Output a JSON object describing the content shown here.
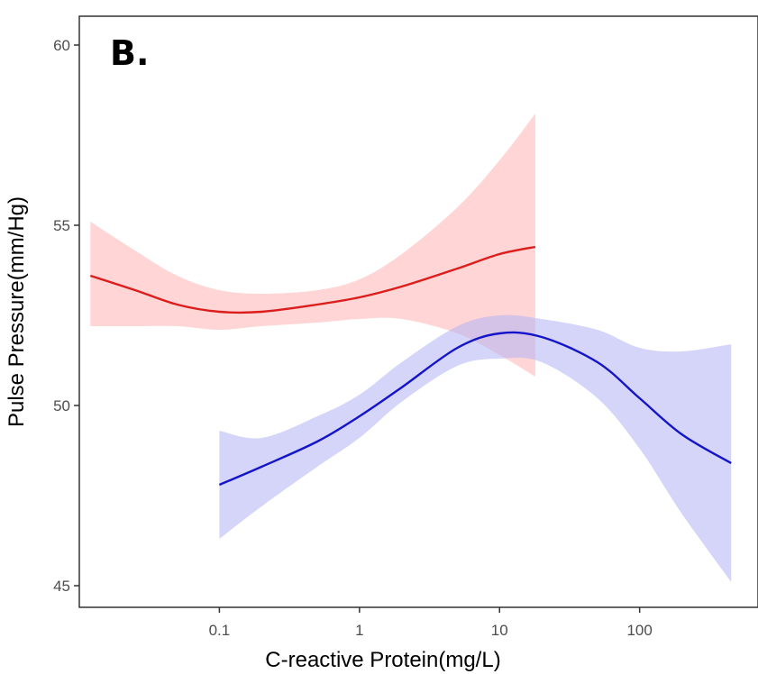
{
  "chart_data": {
    "type": "line",
    "panel_label": "B.",
    "xlabel": "C-reactive Protein(mg/L)",
    "ylabel": "Pulse Pressure(mm/Hg)",
    "x_scale": "log10",
    "xlim": [
      0.01,
      700
    ],
    "ylim": [
      44.4,
      60.8
    ],
    "x_ticks": [
      0.1,
      1,
      10,
      100
    ],
    "x_tick_labels": [
      "0.1",
      "1",
      "10",
      "100"
    ],
    "y_ticks": [
      45,
      50,
      55,
      60
    ],
    "y_tick_labels": [
      "45",
      "50",
      "55",
      "60"
    ],
    "grid": false,
    "legend": "none",
    "series": [
      {
        "color": "#dd1c1c",
        "band_color": "#ffb3b3",
        "x": [
          0.012,
          0.025,
          0.05,
          0.1,
          0.2,
          0.5,
          1,
          2,
          5,
          10,
          18
        ],
        "y": [
          53.6,
          53.2,
          52.8,
          52.6,
          52.6,
          52.8,
          53.0,
          53.3,
          53.8,
          54.2,
          54.4
        ],
        "lower": [
          52.2,
          52.2,
          52.2,
          52.1,
          52.2,
          52.3,
          52.4,
          52.4,
          52.0,
          51.4,
          50.8
        ],
        "upper": [
          55.1,
          54.3,
          53.6,
          53.2,
          53.1,
          53.2,
          53.5,
          54.2,
          55.5,
          56.8,
          58.1
        ]
      },
      {
        "color": "#1414c8",
        "band_color": "#b3b3f5",
        "x": [
          0.1,
          0.2,
          0.5,
          1,
          2,
          5,
          10,
          20,
          50,
          100,
          200,
          450
        ],
        "y": [
          47.8,
          48.3,
          49.0,
          49.7,
          50.5,
          51.6,
          52.0,
          51.9,
          51.2,
          50.2,
          49.2,
          48.4
        ],
        "lower": [
          46.3,
          47.2,
          48.3,
          49.1,
          50.1,
          51.1,
          51.3,
          51.2,
          50.2,
          48.8,
          47.0,
          45.1
        ],
        "upper": [
          49.3,
          49.1,
          49.7,
          50.3,
          51.2,
          52.2,
          52.5,
          52.4,
          52.1,
          51.6,
          51.5,
          51.7
        ]
      }
    ]
  }
}
